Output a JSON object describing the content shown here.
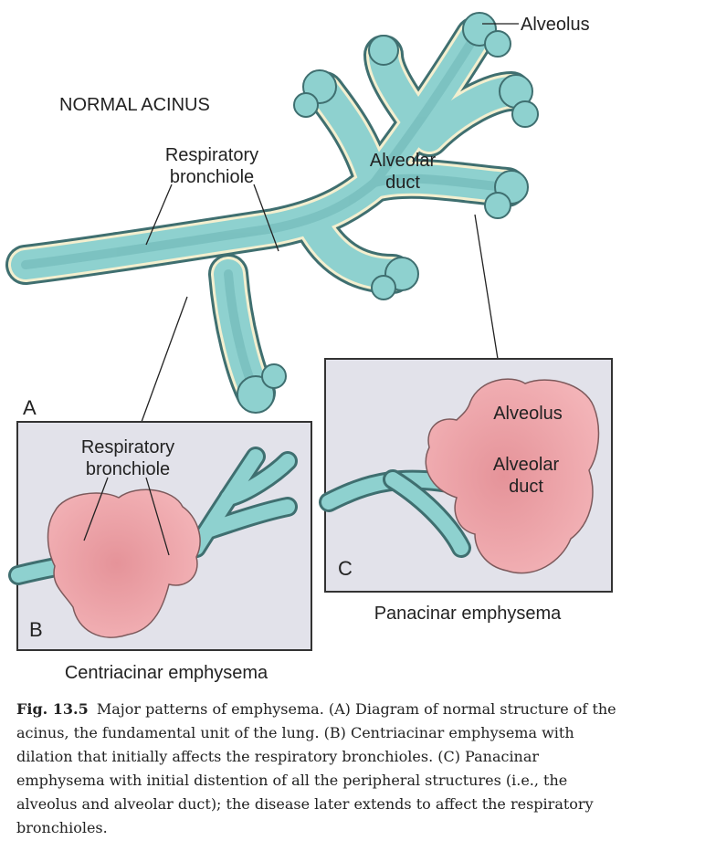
{
  "panel_a": {
    "title": "NORMAL ACINUS",
    "letter": "A",
    "respiratory_bronchiole": [
      "Respiratory",
      "bronchiole"
    ],
    "alveolar_duct": [
      "Alveolar",
      "duct"
    ],
    "alveolus": "Alveolus"
  },
  "panel_b": {
    "letter": "B",
    "respiratory_bronchiole": [
      "Respiratory",
      "bronchiole"
    ],
    "title": "Centriacinar emphysema"
  },
  "panel_c": {
    "letter": "C",
    "alveolus": "Alveolus",
    "alveolar_duct": [
      "Alveolar",
      "duct"
    ],
    "title": "Panacinar emphysema"
  },
  "caption": {
    "figure_number": "Fig. 13.5",
    "text": "Major patterns of emphysema. (A) Diagram of normal structure of the acinus, the fundamental unit of the lung. (B) Centriacinar emphysema with dilation that initially affects the respiratory bronchioles. (C) Panacinar emphysema with initial distention of all the peripheral structures (i.e., the alveolus and alveolar duct); the disease later extends to affect the respiratory bronchioles."
  },
  "colors": {
    "airway_fill": "#8ed1cf",
    "airway_outline": "#3f6f70",
    "airway_rim": "#f3efcf",
    "emphysema_fill": "#f1a9ae",
    "panel_background": "#e2e2ea",
    "panel_border": "#333333"
  }
}
